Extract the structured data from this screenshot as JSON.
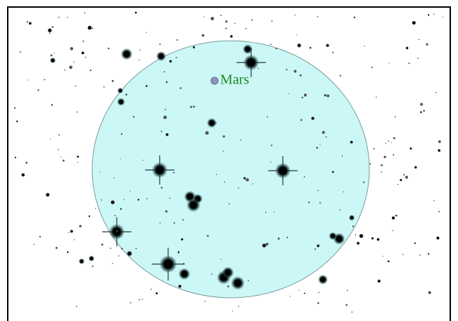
{
  "label": "Mars"
}
